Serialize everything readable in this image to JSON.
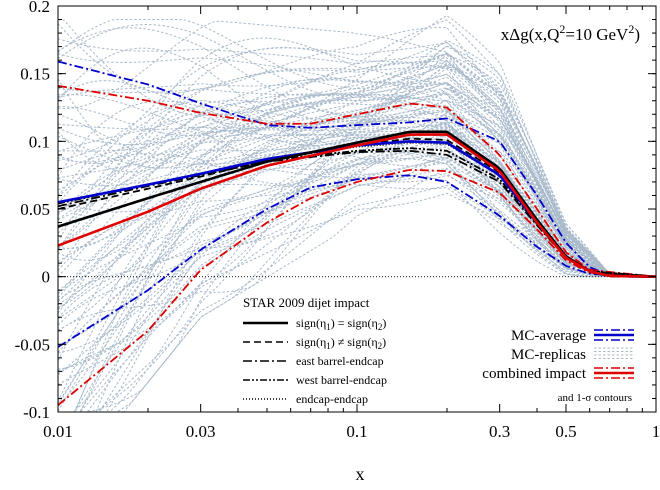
{
  "chart_data": {
    "type": "line",
    "title": "xΔg(x,Q²=10 GeV²)",
    "title_parts": [
      "xΔg(x,Q",
      "2",
      "=10 GeV",
      "2",
      ")"
    ],
    "xlabel": "x",
    "ylabel": "",
    "x_scale": "log",
    "xlim": [
      0.01,
      1
    ],
    "ylim": [
      -0.1,
      0.2
    ],
    "x_ticks": [
      {
        "value": 0.01,
        "label": "0.01"
      },
      {
        "value": 0.03,
        "label": "0.03"
      },
      {
        "value": 0.1,
        "label": "0.1"
      },
      {
        "value": 0.3,
        "label": "0.3"
      },
      {
        "value": 0.5,
        "label": "0.5"
      },
      {
        "value": 1,
        "label": "1"
      }
    ],
    "y_ticks": [
      {
        "value": -0.1,
        "label": "-0.1"
      },
      {
        "value": -0.05,
        "label": "-0.05"
      },
      {
        "value": 0,
        "label": "0"
      },
      {
        "value": 0.05,
        "label": "0.05"
      },
      {
        "value": 0.1,
        "label": "0.1"
      },
      {
        "value": 0.15,
        "label": "0.15"
      },
      {
        "value": 0.2,
        "label": "0.2"
      }
    ],
    "grid": false,
    "colors": {
      "replicas": "#a9bacb",
      "mc": "#0000cc",
      "combined": "#e00000",
      "impact": "#000000"
    },
    "series": [
      {
        "name": "MC-replicas",
        "style": "dotted",
        "color": "#a9bacb",
        "band_lo": [
          [
            0.01,
            -0.16
          ],
          [
            0.03,
            -0.03
          ],
          [
            0.1,
            0.04
          ],
          [
            0.2,
            0.05
          ],
          [
            0.3,
            0.025
          ],
          [
            0.5,
            0.0
          ],
          [
            0.7,
            0.0
          ],
          [
            1,
            0.0
          ]
        ],
        "band_hi": [
          [
            0.01,
            0.19
          ],
          [
            0.03,
            0.19
          ],
          [
            0.1,
            0.18
          ],
          [
            0.2,
            0.2
          ],
          [
            0.3,
            0.16
          ],
          [
            0.5,
            0.04
          ],
          [
            0.7,
            0.002
          ],
          [
            1,
            0.0
          ]
        ]
      },
      {
        "name": "MC-average",
        "style": "solid",
        "color": "#0000cc",
        "points": [
          [
            0.01,
            0.055
          ],
          [
            0.02,
            0.068
          ],
          [
            0.03,
            0.076
          ],
          [
            0.05,
            0.087
          ],
          [
            0.1,
            0.097
          ],
          [
            0.15,
            0.1
          ],
          [
            0.2,
            0.099
          ],
          [
            0.3,
            0.075
          ],
          [
            0.4,
            0.04
          ],
          [
            0.5,
            0.015
          ],
          [
            0.6,
            0.004
          ],
          [
            0.7,
            0.0005
          ],
          [
            1,
            0.0
          ]
        ]
      },
      {
        "name": "MC-average σ upper",
        "style": "dashdot",
        "color": "#0000cc",
        "points": [
          [
            0.01,
            0.159
          ],
          [
            0.02,
            0.142
          ],
          [
            0.03,
            0.128
          ],
          [
            0.05,
            0.112
          ],
          [
            0.07,
            0.11
          ],
          [
            0.1,
            0.112
          ],
          [
            0.15,
            0.114
          ],
          [
            0.2,
            0.117
          ],
          [
            0.3,
            0.1
          ],
          [
            0.4,
            0.06
          ],
          [
            0.5,
            0.025
          ],
          [
            0.6,
            0.007
          ],
          [
            0.7,
            0.001
          ],
          [
            1,
            0.0
          ]
        ]
      },
      {
        "name": "MC-average σ lower",
        "style": "dashdot",
        "color": "#0000cc",
        "points": [
          [
            0.01,
            -0.052
          ],
          [
            0.02,
            -0.01
          ],
          [
            0.03,
            0.02
          ],
          [
            0.05,
            0.05
          ],
          [
            0.07,
            0.066
          ],
          [
            0.1,
            0.072
          ],
          [
            0.15,
            0.075
          ],
          [
            0.2,
            0.07
          ],
          [
            0.3,
            0.045
          ],
          [
            0.4,
            0.022
          ],
          [
            0.5,
            0.008
          ],
          [
            0.6,
            0.002
          ],
          [
            1,
            0.0
          ]
        ]
      },
      {
        "name": "combined impact",
        "style": "solid",
        "color": "#e00000",
        "points": [
          [
            0.01,
            0.023
          ],
          [
            0.02,
            0.048
          ],
          [
            0.03,
            0.065
          ],
          [
            0.05,
            0.082
          ],
          [
            0.1,
            0.097
          ],
          [
            0.15,
            0.105
          ],
          [
            0.2,
            0.105
          ],
          [
            0.3,
            0.078
          ],
          [
            0.4,
            0.04
          ],
          [
            0.5,
            0.014
          ],
          [
            0.6,
            0.004
          ],
          [
            0.7,
            0.0005
          ],
          [
            1,
            0.0
          ]
        ]
      },
      {
        "name": "combined impact σ upper",
        "style": "dashdot",
        "color": "#e00000",
        "points": [
          [
            0.01,
            0.141
          ],
          [
            0.02,
            0.13
          ],
          [
            0.03,
            0.121
          ],
          [
            0.05,
            0.113
          ],
          [
            0.07,
            0.113
          ],
          [
            0.1,
            0.12
          ],
          [
            0.15,
            0.128
          ],
          [
            0.2,
            0.125
          ],
          [
            0.3,
            0.09
          ],
          [
            0.4,
            0.05
          ],
          [
            0.5,
            0.018
          ],
          [
            0.6,
            0.005
          ],
          [
            1,
            0.0
          ]
        ]
      },
      {
        "name": "combined impact σ lower",
        "style": "dashdot",
        "color": "#e00000",
        "points": [
          [
            0.01,
            -0.095
          ],
          [
            0.02,
            -0.04
          ],
          [
            0.03,
            0.005
          ],
          [
            0.05,
            0.04
          ],
          [
            0.07,
            0.058
          ],
          [
            0.1,
            0.07
          ],
          [
            0.15,
            0.079
          ],
          [
            0.2,
            0.078
          ],
          [
            0.3,
            0.062
          ],
          [
            0.4,
            0.035
          ],
          [
            0.5,
            0.012
          ],
          [
            0.6,
            0.003
          ],
          [
            1,
            0.0
          ]
        ]
      },
      {
        "name": "sign(η1) = sign(η2)",
        "style": "solid",
        "color": "#000000",
        "points": [
          [
            0.01,
            0.037
          ],
          [
            0.02,
            0.058
          ],
          [
            0.03,
            0.07
          ],
          [
            0.05,
            0.085
          ],
          [
            0.1,
            0.099
          ],
          [
            0.15,
            0.107
          ],
          [
            0.2,
            0.107
          ],
          [
            0.3,
            0.08
          ],
          [
            0.4,
            0.042
          ],
          [
            0.5,
            0.015
          ],
          [
            0.6,
            0.004
          ],
          [
            0.7,
            0.0005
          ],
          [
            1,
            0.0
          ]
        ]
      },
      {
        "name": "sign(η1) ≠ sign(η2)",
        "style": "dashed",
        "color": "#000000",
        "points": [
          [
            0.01,
            0.05
          ],
          [
            0.02,
            0.065
          ],
          [
            0.03,
            0.074
          ],
          [
            0.05,
            0.086
          ],
          [
            0.1,
            0.097
          ],
          [
            0.15,
            0.102
          ],
          [
            0.2,
            0.101
          ],
          [
            0.3,
            0.077
          ],
          [
            0.4,
            0.04
          ],
          [
            0.5,
            0.014
          ],
          [
            0.6,
            0.004
          ],
          [
            0.7,
            0.0005
          ],
          [
            1,
            0.0
          ]
        ]
      },
      {
        "name": "east barrel-endcap",
        "style": "dashdot",
        "color": "#000000",
        "points": [
          [
            0.01,
            0.052
          ],
          [
            0.02,
            0.067
          ],
          [
            0.03,
            0.075
          ],
          [
            0.05,
            0.085
          ],
          [
            0.1,
            0.092
          ],
          [
            0.15,
            0.093
          ],
          [
            0.2,
            0.09
          ],
          [
            0.3,
            0.07
          ],
          [
            0.4,
            0.038
          ],
          [
            0.5,
            0.014
          ],
          [
            0.6,
            0.004
          ],
          [
            1,
            0.0
          ]
        ]
      },
      {
        "name": "west barrel-endcap",
        "style": "dashdotdot",
        "color": "#000000",
        "points": [
          [
            0.01,
            0.054
          ],
          [
            0.02,
            0.068
          ],
          [
            0.03,
            0.076
          ],
          [
            0.05,
            0.086
          ],
          [
            0.1,
            0.093
          ],
          [
            0.15,
            0.095
          ],
          [
            0.2,
            0.093
          ],
          [
            0.3,
            0.072
          ],
          [
            0.4,
            0.039
          ],
          [
            0.5,
            0.014
          ],
          [
            0.6,
            0.004
          ],
          [
            1,
            0.0
          ]
        ]
      },
      {
        "name": "endcap-endcap",
        "style": "finedotted",
        "color": "#000000",
        "points": [
          [
            0.01,
            0.055
          ],
          [
            0.02,
            0.068
          ],
          [
            0.03,
            0.076
          ],
          [
            0.05,
            0.087
          ],
          [
            0.1,
            0.096
          ],
          [
            0.15,
            0.099
          ],
          [
            0.2,
            0.098
          ],
          [
            0.3,
            0.075
          ],
          [
            0.4,
            0.04
          ],
          [
            0.5,
            0.015
          ],
          [
            0.6,
            0.004
          ],
          [
            1,
            0.0
          ]
        ]
      },
      {
        "name": "zero",
        "style": "finedotted",
        "color": "#000000",
        "points": [
          [
            0.01,
            0.0
          ],
          [
            1,
            0.0
          ]
        ]
      }
    ],
    "legend_left": {
      "placement": "bottom-center",
      "title": "STAR 2009 dijet impact",
      "entries": [
        {
          "label": "sign(η1) = sign(η2)",
          "parts": [
            "sign(η",
            "1",
            ") = sign(η",
            "2",
            ")"
          ],
          "style": "solid"
        },
        {
          "label": "sign(η1) ≠ sign(η2)",
          "parts": [
            "sign(η",
            "1",
            ") ≠ sign(η",
            "2",
            ")"
          ],
          "style": "dashed"
        },
        {
          "label": "east barrel-endcap",
          "parts": [
            "east barrel-endcap"
          ],
          "style": "dashdot"
        },
        {
          "label": "west barrel-endcap",
          "parts": [
            "west barrel-endcap"
          ],
          "style": "dashdotdot"
        },
        {
          "label": "endcap-endcap",
          "parts": [
            "endcap-endcap"
          ],
          "style": "finedotted"
        }
      ]
    },
    "legend_right": {
      "placement": "bottom-right",
      "entries": [
        {
          "label": "MC-average",
          "color": "#0000cc",
          "symbol": "band"
        },
        {
          "label": "MC-replicas",
          "color": "#a9bacb",
          "symbol": "replicas"
        },
        {
          "label": "combined impact",
          "color": "#e00000",
          "symbol": "band"
        }
      ],
      "footnote": "and 1-σ contours"
    }
  }
}
